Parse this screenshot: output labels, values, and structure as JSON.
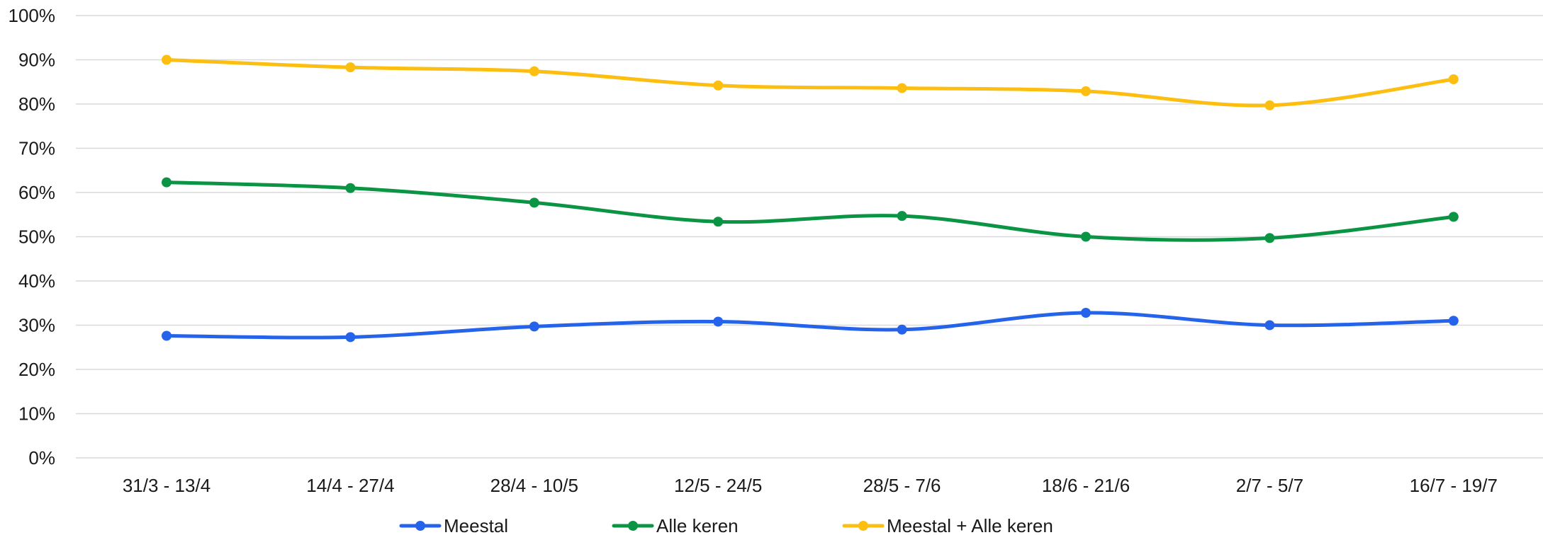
{
  "chart_data": {
    "type": "line",
    "title": "",
    "xlabel": "",
    "ylabel": "",
    "categories": [
      "31/3 - 13/4",
      "14/4 - 27/4",
      "28/4 - 10/5",
      "12/5 - 24/5",
      "28/5 - 7/6",
      "18/6 - 21/6",
      "2/7 - 5/7",
      "16/7 - 19/7"
    ],
    "ylim": [
      0,
      100
    ],
    "yticks": [
      0,
      10,
      20,
      30,
      40,
      50,
      60,
      70,
      80,
      90,
      100
    ],
    "ytick_labels": [
      "0%",
      "10%",
      "20%",
      "30%",
      "40%",
      "50%",
      "60%",
      "70%",
      "80%",
      "90%",
      "100%"
    ],
    "grid": true,
    "smooth": true,
    "legend_position": "bottom",
    "series": [
      {
        "name": "Meestal",
        "color": "#2563EB",
        "values": [
          27.6,
          27.3,
          29.7,
          30.8,
          29.0,
          32.8,
          30.0,
          31.0
        ]
      },
      {
        "name": "Alle keren",
        "color": "#0B9444",
        "values": [
          62.3,
          61.0,
          57.7,
          53.4,
          54.7,
          50.0,
          49.7,
          54.5
        ]
      },
      {
        "name": "Meestal + Alle keren",
        "color": "#FDBE12",
        "values": [
          90.0,
          88.3,
          87.4,
          84.2,
          83.6,
          82.9,
          79.7,
          85.6
        ]
      }
    ]
  }
}
